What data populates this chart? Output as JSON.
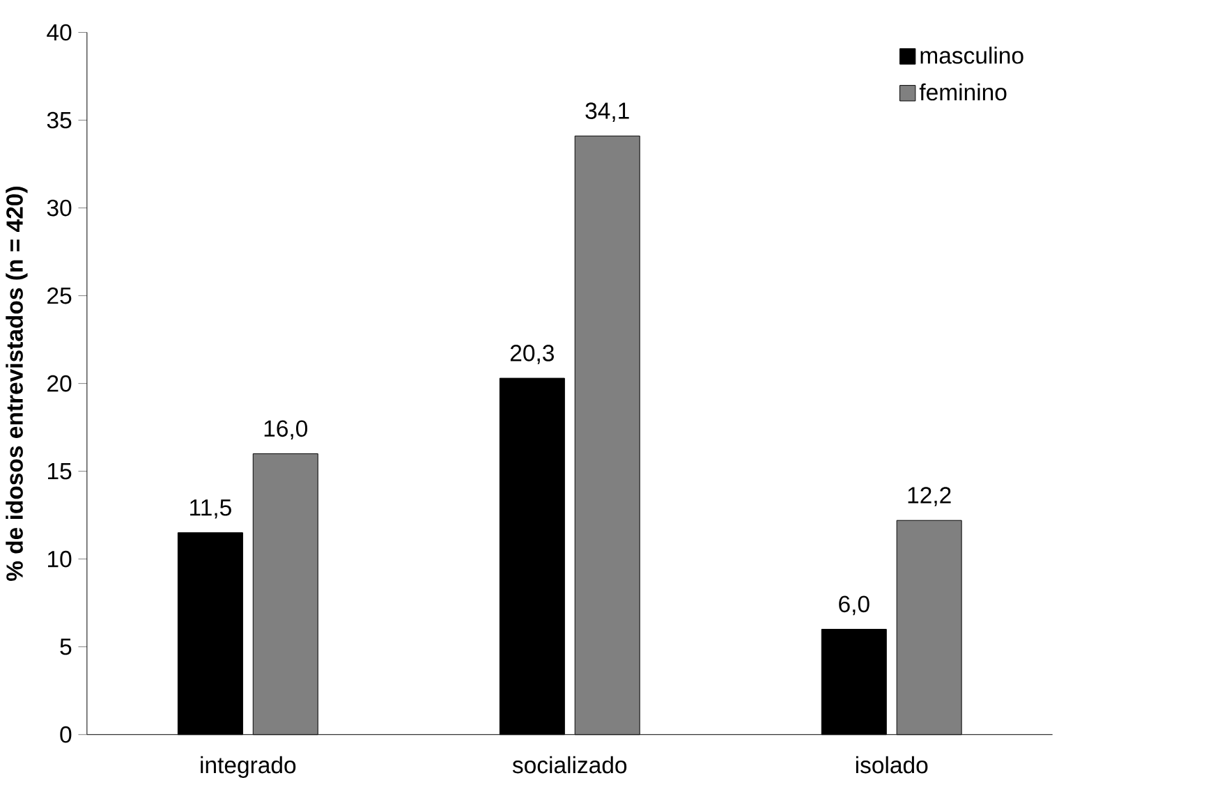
{
  "chart_data": {
    "type": "bar",
    "ylabel": "% de idosos entrevistados (n = 420)",
    "categories": [
      "integrado",
      "socializado",
      "isolado"
    ],
    "series": [
      {
        "name": "masculino",
        "color": "#000000",
        "values": [
          11.5,
          20.3,
          6.0
        ],
        "value_labels": [
          "11,5",
          "20,3",
          "6,0"
        ]
      },
      {
        "name": "feminino",
        "color": "#808080",
        "values": [
          16.0,
          34.1,
          12.2
        ],
        "value_labels": [
          "16,0",
          "34,1",
          "12,2"
        ]
      }
    ],
    "ylim": [
      0,
      40
    ],
    "yticks": [
      0,
      5,
      10,
      15,
      20,
      25,
      30,
      35,
      40
    ],
    "grid": false,
    "legend": "top right"
  }
}
